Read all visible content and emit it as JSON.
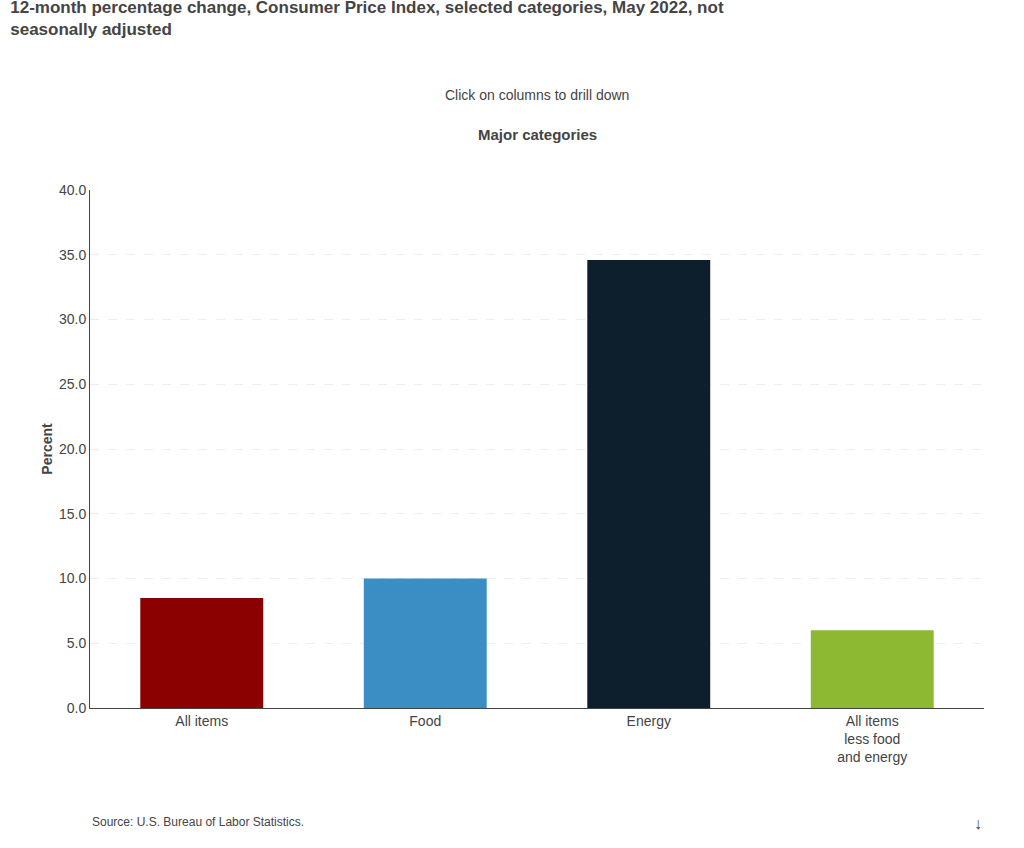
{
  "chart_data": {
    "type": "bar",
    "title": "12-month percentage change, Consumer Price Index, selected categories, May 2022, not\nseasonally adjusted",
    "subtitle": "Click on columns to drill down",
    "annotations": [
      "Major categories",
      "Source: U.S. Bureau of Labor Statistics.",
      "↓"
    ],
    "ylabel": "Percent",
    "categories": [
      "All items",
      "Food",
      "Energy",
      "All items\nless food\nand energy"
    ],
    "values": [
      8.5,
      10.0,
      34.6,
      6.0
    ],
    "colors": [
      "#8B0000",
      "#3A8EC4",
      "#0D1F2D",
      "#8DB832"
    ],
    "ylim": [
      0,
      40
    ],
    "yticks": [
      {
        "value": 0,
        "label": "0.0"
      },
      {
        "value": 5,
        "label": "5.0"
      },
      {
        "value": 10,
        "label": "10.0"
      },
      {
        "value": 15,
        "label": "15.0"
      },
      {
        "value": 20,
        "label": "20.0"
      },
      {
        "value": 25,
        "label": "25.0"
      },
      {
        "value": 30,
        "label": "30.0"
      },
      {
        "value": 35,
        "label": "35.0"
      },
      {
        "value": 40,
        "label": "40.0"
      }
    ],
    "grid": true
  }
}
